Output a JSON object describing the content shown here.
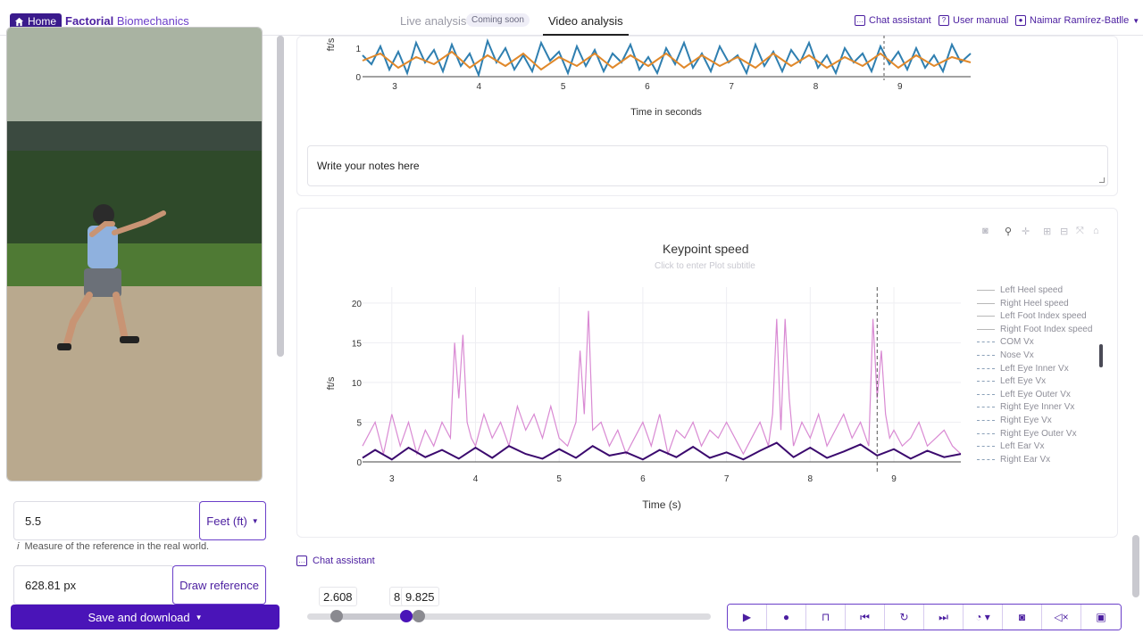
{
  "nav": {
    "home": "Home",
    "brand_a": "Factorial",
    "brand_b": "Biomechanics",
    "tab_live": "Live analysis",
    "coming_soon": "Coming soon",
    "tab_video": "Video analysis",
    "chat": "Chat assistant",
    "manual": "User manual",
    "user": "Naimar Ramírez-Batlle"
  },
  "left": {
    "measure_value": "5.5",
    "unit": "Feet (ft)",
    "hint": "Measure of the reference in the real world.",
    "px_value": "628.81 px",
    "draw_button": "Draw reference",
    "save_button": "Save and download"
  },
  "top_chart": {
    "ylabel": "ft/s",
    "ytick": "1",
    "ytick0": "0",
    "xticks": [
      "3",
      "4",
      "5",
      "6",
      "7",
      "8",
      "9"
    ],
    "xlabel": "Time in seconds"
  },
  "notes_placeholder": "Write your notes here",
  "chart_data": {
    "type": "line",
    "title": "Keypoint speed",
    "subtitle": "Click to enter Plot subtitle",
    "xlabel": "Time (s)",
    "ylabel": "ft/s",
    "xlim": [
      2.65,
      9.8
    ],
    "ylim": [
      0,
      22
    ],
    "xticks": [
      "3",
      "4",
      "5",
      "6",
      "7",
      "8",
      "9"
    ],
    "yticks": [
      "0",
      "5",
      "10",
      "15",
      "20"
    ],
    "marker_x": 8.8,
    "series": [
      {
        "name_color": "#d98ad3",
        "color": "#d98ad3",
        "x": [
          2.65,
          2.8,
          2.9,
          3.0,
          3.1,
          3.2,
          3.3,
          3.4,
          3.5,
          3.6,
          3.7,
          3.75,
          3.8,
          3.85,
          3.9,
          3.95,
          4.0,
          4.1,
          4.2,
          4.3,
          4.4,
          4.5,
          4.6,
          4.7,
          4.8,
          4.9,
          5.0,
          5.1,
          5.2,
          5.25,
          5.3,
          5.35,
          5.4,
          5.5,
          5.6,
          5.7,
          5.8,
          5.9,
          6.0,
          6.1,
          6.2,
          6.3,
          6.4,
          6.5,
          6.6,
          6.7,
          6.8,
          6.9,
          7.0,
          7.1,
          7.2,
          7.3,
          7.4,
          7.5,
          7.55,
          7.6,
          7.65,
          7.7,
          7.75,
          7.8,
          7.9,
          8.0,
          8.1,
          8.2,
          8.3,
          8.4,
          8.5,
          8.6,
          8.7,
          8.75,
          8.8,
          8.85,
          8.9,
          8.95,
          9.0,
          9.1,
          9.2,
          9.3,
          9.4,
          9.5,
          9.6,
          9.7,
          9.8
        ],
        "y": [
          2,
          5,
          1,
          6,
          2,
          5,
          1,
          4,
          2,
          5,
          3,
          15,
          8,
          16,
          5,
          3,
          2,
          6,
          3,
          5,
          2,
          7,
          4,
          6,
          3,
          7,
          3,
          2,
          5,
          14,
          6,
          19,
          4,
          5,
          2,
          4,
          1,
          3,
          5,
          2,
          6,
          1,
          4,
          3,
          5,
          2,
          4,
          3,
          5,
          3,
          1,
          3,
          5,
          2,
          6,
          18,
          4,
          18,
          8,
          2,
          5,
          3,
          6,
          2,
          4,
          6,
          3,
          5,
          2,
          18,
          8,
          14,
          6,
          3,
          4,
          2,
          3,
          5,
          2,
          3,
          4,
          2,
          1
        ]
      },
      {
        "name_color": "#3b0a6e",
        "color": "#3b0a6e",
        "x": [
          2.65,
          2.8,
          3.0,
          3.2,
          3.4,
          3.6,
          3.8,
          4.0,
          4.2,
          4.4,
          4.6,
          4.8,
          5.0,
          5.2,
          5.4,
          5.6,
          5.8,
          6.0,
          6.2,
          6.4,
          6.6,
          6.8,
          7.0,
          7.2,
          7.4,
          7.6,
          7.8,
          8.0,
          8.2,
          8.4,
          8.6,
          8.8,
          9.0,
          9.2,
          9.4,
          9.6,
          9.8
        ],
        "y": [
          0.5,
          1.5,
          0.3,
          1.8,
          0.6,
          1.5,
          0.4,
          1.8,
          0.5,
          2.0,
          1.0,
          0.4,
          1.6,
          0.5,
          2.0,
          0.8,
          1.2,
          0.3,
          1.5,
          0.6,
          1.9,
          0.5,
          1.2,
          0.3,
          1.4,
          2.4,
          0.6,
          1.8,
          0.5,
          1.3,
          2.2,
          0.8,
          1.6,
          0.4,
          1.4,
          0.6,
          1.0
        ]
      }
    ]
  },
  "legend": [
    {
      "label": "Left Heel speed",
      "style": "solid"
    },
    {
      "label": "Right Heel speed",
      "style": "solid"
    },
    {
      "label": "Left Foot Index speed",
      "style": "solid"
    },
    {
      "label": "Right Foot Index speed",
      "style": "solid"
    },
    {
      "label": "COM Vx",
      "style": "dash"
    },
    {
      "label": "Nose Vx",
      "style": "dash"
    },
    {
      "label": "Left Eye Inner Vx",
      "style": "dash"
    },
    {
      "label": "Left Eye Vx",
      "style": "dash"
    },
    {
      "label": "Left Eye Outer Vx",
      "style": "dash"
    },
    {
      "label": "Right Eye Inner Vx",
      "style": "dash"
    },
    {
      "label": "Right Eye Vx",
      "style": "dash"
    },
    {
      "label": "Right Eye Outer Vx",
      "style": "dash"
    },
    {
      "label": "Left Ear Vx",
      "style": "dash"
    },
    {
      "label": "Right Ear Vx",
      "style": "dash"
    }
  ],
  "chat_bottom": "Chat assistant",
  "timeline": {
    "start": "2.608",
    "mid": "8",
    "end": "9.825"
  },
  "controls": [
    "play",
    "record",
    "unlock",
    "skip-back",
    "replay",
    "skip-forward",
    "speed",
    "camera",
    "mute",
    "window"
  ]
}
